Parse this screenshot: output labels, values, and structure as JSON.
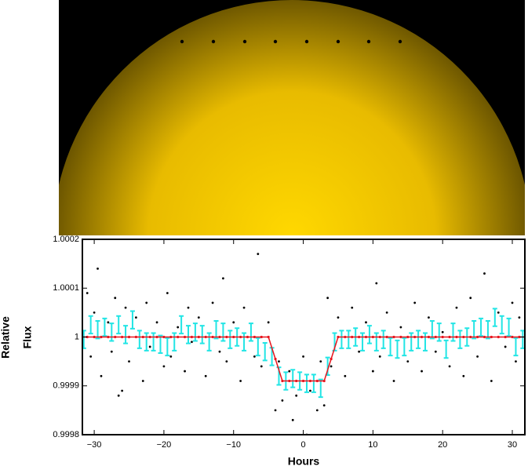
{
  "chart_data": {
    "type": "scatter",
    "ylabel": [
      "Relative",
      "Flux"
    ],
    "xlabel": "Hours",
    "xlim": [
      -31.7,
      31.8
    ],
    "ylim": [
      0.9998,
      1.0002
    ],
    "xticks": [
      {
        "value": -30,
        "label": "−30"
      },
      {
        "value": -20,
        "label": "−20"
      },
      {
        "value": -10,
        "label": "−10"
      },
      0,
      10,
      20,
      30
    ],
    "yticks": [
      0.9998,
      0.9999,
      1,
      1.0001,
      1.0002
    ],
    "points": {
      "color": "#000000",
      "x": [
        -31,
        -30.5,
        -30,
        -29.5,
        -29,
        -28,
        -27.5,
        -27,
        -26,
        -25.5,
        -25,
        -24,
        -23,
        -22.5,
        -22,
        -21,
        -20,
        -19.5,
        -19,
        -18,
        -17,
        -16.5,
        -16,
        -15,
        -14,
        -13,
        -12,
        -11.5,
        -11,
        -10,
        -9,
        -8.5,
        -7,
        -6.5,
        -6,
        -5,
        -4,
        -3.5,
        -3,
        -2,
        -1.5,
        -1,
        0,
        0.5,
        1,
        2,
        2.5,
        3,
        3.5,
        4,
        5,
        6,
        7,
        8,
        9,
        10,
        10.5,
        11,
        12,
        13,
        14,
        15,
        16,
        17,
        18,
        19,
        20,
        21,
        22,
        23,
        24,
        25,
        26,
        27,
        28,
        29,
        30,
        30.5,
        31,
        -26.5
      ],
      "y": [
        1.00009,
        0.99996,
        1.00005,
        1.00014,
        0.99992,
        1.00003,
        0.99997,
        1.00008,
        0.99989,
        1.00006,
        0.99995,
        1.00004,
        0.99991,
        1.00007,
        0.99998,
        1.00003,
        0.99994,
        1.00009,
        0.99996,
        1.00002,
        0.99993,
        1.00006,
        0.99999,
        1.00004,
        0.99992,
        1.00007,
        0.99997,
        1.00012,
        0.99995,
        1.00003,
        0.99991,
        1.00006,
        0.99996,
        1.00017,
        0.99994,
        1.00003,
        0.99985,
        0.99995,
        0.99987,
        0.99993,
        0.99983,
        0.99988,
        0.99996,
        0.9998,
        0.99989,
        0.99985,
        0.99995,
        0.99986,
        1.00008,
        0.99994,
        1.00004,
        0.99992,
        1.00006,
        0.99997,
        1.00003,
        0.99993,
        1.00011,
        0.99996,
        1.00005,
        0.99991,
        1.00002,
        0.99995,
        1.00007,
        0.99993,
        1.00004,
        0.99997,
        1.00001,
        0.99994,
        1.00006,
        0.99992,
        1.00008,
        0.99996,
        1.00013,
        0.99991,
        1.00005,
        0.99998,
        1.00007,
        0.99995,
        1.00004,
        0.99988
      ]
    },
    "bins": {
      "color": "#22e5e5",
      "x": [
        -31.5,
        -30.5,
        -29.5,
        -28.5,
        -27.5,
        -26.5,
        -25.5,
        -24.5,
        -23.5,
        -22.5,
        -21.5,
        -20.5,
        -19.5,
        -18.5,
        -17.5,
        -16.5,
        -15.5,
        -14.5,
        -13.5,
        -12.5,
        -11.5,
        -10.5,
        -9.5,
        -8.5,
        -7.5,
        -6.5,
        -5.5,
        -4.5,
        -3.5,
        -2.5,
        -1.5,
        -0.5,
        0.5,
        1.5,
        2.5,
        3.5,
        4.5,
        5.5,
        6.5,
        7.5,
        8.5,
        9.5,
        10.5,
        11.5,
        12.5,
        13.5,
        14.5,
        15.5,
        16.5,
        17.5,
        18.5,
        19.5,
        20.5,
        21.5,
        22.5,
        23.5,
        24.5,
        25.5,
        26.5,
        27.5,
        28.5,
        29.5,
        30.5,
        31.5
      ],
      "values": [
        0.999995,
        1.000025,
        1.000015,
        1.00002,
        1.00001,
        1.000025,
        1.000005,
        1.000035,
        0.999995,
        0.99999,
        0.99999,
        0.999985,
        0.99998,
        0.99999,
        1.000025,
        1.000005,
        1.00001,
        1.000005,
        0.99999,
        1.000015,
        1.00001,
        0.999995,
        1,
        0.99999,
        1.00001,
        0.99998,
        0.99997,
        0.99996,
        0.99992,
        0.99991,
        0.999915,
        0.99991,
        0.999905,
        0.999905,
        0.999895,
        0.99994,
        0.99999,
        0.999995,
        0.999995,
        1,
        0.99999,
        1.000005,
        0.99999,
        0.999995,
        0.99998,
        0.999975,
        0.99998,
        0.99999,
        0.999995,
        0.99999,
        1.000015,
        1.00001,
        0.999975,
        1.00001,
        0.999995,
        1,
        1.000015,
        1.00002,
        1.000015,
        1.00004,
        1.000025,
        1.00002,
        0.99998,
        0.999995
      ],
      "errors": [
        1.8e-05,
        1.8e-05,
        1.8e-05,
        1.8e-05,
        1.8e-05,
        1.8e-05,
        1.8e-05,
        1.8e-05,
        1.8e-05,
        1.8e-05,
        1.8e-05,
        1.8e-05,
        1.8e-05,
        1.8e-05,
        1.8e-05,
        1.8e-05,
        1.8e-05,
        1.8e-05,
        1.8e-05,
        1.8e-05,
        1.8e-05,
        1.8e-05,
        1.8e-05,
        1.8e-05,
        1.8e-05,
        1.8e-05,
        1.8e-05,
        1.8e-05,
        1.8e-05,
        1.8e-05,
        1.8e-05,
        1.8e-05,
        1.8e-05,
        1.8e-05,
        1.8e-05,
        1.8e-05,
        1.8e-05,
        1.8e-05,
        1.8e-05,
        1.8e-05,
        1.8e-05,
        1.8e-05,
        1.8e-05,
        1.8e-05,
        1.8e-05,
        1.8e-05,
        1.8e-05,
        1.8e-05,
        1.8e-05,
        1.8e-05,
        1.8e-05,
        1.8e-05,
        1.8e-05,
        1.8e-05,
        1.8e-05,
        1.8e-05,
        1.8e-05,
        1.8e-05,
        1.8e-05,
        1.8e-05,
        1.8e-05,
        1.8e-05,
        1.8e-05,
        1.8e-05
      ]
    },
    "model": {
      "color": "#e8141c",
      "x": [
        -32,
        -31,
        -30,
        -29,
        -28,
        -27,
        -26,
        -25,
        -24,
        -23,
        -22,
        -21,
        -20,
        -19,
        -18,
        -17,
        -16,
        -15,
        -14,
        -13,
        -12,
        -11,
        -10,
        -9,
        -8,
        -7,
        -6,
        -5,
        -4,
        -3,
        -2,
        -1,
        0,
        1,
        2,
        3,
        4,
        5,
        6,
        7,
        8,
        9,
        10,
        11,
        12,
        13,
        14,
        15,
        16,
        17,
        18,
        19,
        20,
        21,
        22,
        23,
        24,
        25,
        26,
        27,
        28,
        29,
        30,
        31,
        32
      ],
      "values": [
        1,
        1,
        1,
        1,
        1,
        1,
        1,
        1,
        1,
        1,
        1,
        1,
        1,
        1,
        1,
        1,
        1,
        1,
        1,
        1,
        1,
        1,
        1,
        1,
        1,
        1,
        1,
        1,
        0.999955,
        0.99991,
        0.99991,
        0.99991,
        0.99991,
        0.99991,
        0.99991,
        0.99991,
        0.999955,
        1,
        1,
        1,
        1,
        1,
        1,
        1,
        1,
        1,
        1,
        1,
        1,
        1,
        1,
        1,
        1,
        1,
        1,
        1,
        1,
        1,
        1,
        1,
        1,
        1,
        1,
        1,
        1
      ]
    }
  }
}
